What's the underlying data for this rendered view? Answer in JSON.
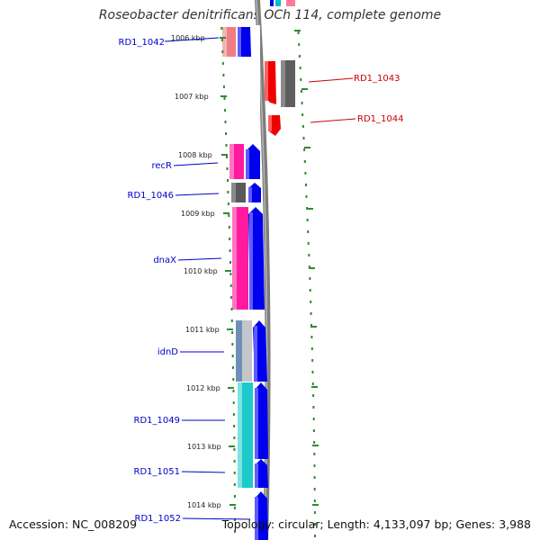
{
  "title": "Roseobacter denitrificans OCh 114, complete genome",
  "footer": {
    "accession": "Accession: NC_008209",
    "summary": "Topology: circular; Length: 4,133,097 bp; Genes: 3,988"
  },
  "colors": {
    "backbone": "#8a8a8a",
    "tick": "#2e8b2e",
    "label_forward": "#0000cc",
    "label_reverse": "#cc0000"
  },
  "ticks": [
    {
      "label": "1006 kbp"
    },
    {
      "label": "1007 kbp"
    },
    {
      "label": "1008 kbp"
    },
    {
      "label": "1009 kbp"
    },
    {
      "label": "1010 kbp"
    },
    {
      "label": "1011 kbp"
    },
    {
      "label": "1012 kbp"
    },
    {
      "label": "1013 kbp"
    },
    {
      "label": "1014 kbp"
    }
  ],
  "genes": [
    {
      "name": "RD1_1042",
      "strand": "+"
    },
    {
      "name": "RD1_1043",
      "strand": "-"
    },
    {
      "name": "RD1_1044",
      "strand": "-"
    },
    {
      "name": "recR",
      "strand": "+"
    },
    {
      "name": "RD1_1046",
      "strand": "+"
    },
    {
      "name": "dnaX",
      "strand": "+"
    },
    {
      "name": "idnD",
      "strand": "+"
    },
    {
      "name": "RD1_1049",
      "strand": "+"
    },
    {
      "name": "RD1_1051",
      "strand": "+"
    },
    {
      "name": "RD1_1052",
      "strand": "+"
    }
  ]
}
